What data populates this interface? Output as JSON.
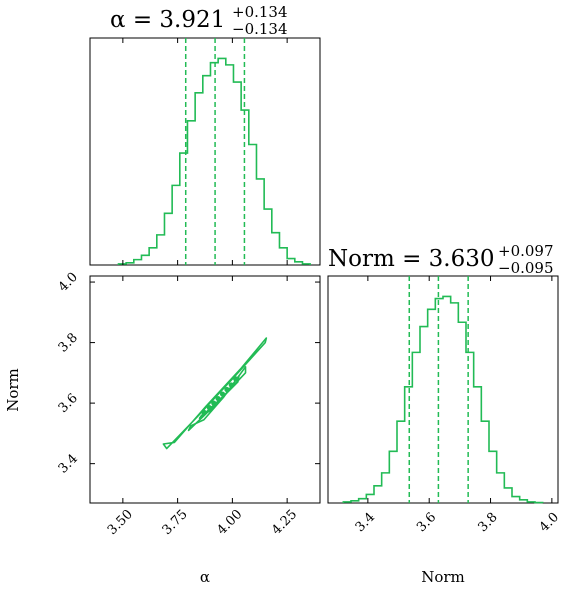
{
  "colors": {
    "series": "#22bb55",
    "axis": "#000000",
    "background": "#ffffff"
  },
  "chart_data": [
    {
      "type": "histogram",
      "panel": "alpha-marginal",
      "title": {
        "prefix": "α = 3.921",
        "sup": "+0.134",
        "sub": "−0.134"
      },
      "xlim": [
        3.35,
        4.4
      ],
      "bin_width": 0.035,
      "bin_start": 3.48,
      "counts": [
        0.5,
        1.0,
        2.5,
        4.5,
        8,
        14,
        24,
        37,
        52,
        67,
        80,
        88,
        94,
        96,
        93,
        85,
        72,
        56,
        40,
        26,
        15,
        8,
        3,
        1.5,
        0.5
      ],
      "quantiles": [
        3.787,
        3.921,
        4.055
      ]
    },
    {
      "type": "contour",
      "panel": "alpha-norm-2d",
      "xlim": [
        3.35,
        4.4
      ],
      "ylim": [
        3.27,
        4.02
      ],
      "xlabel": "α",
      "ylabel": "Norm",
      "xticks": [
        "3.50",
        "3.75",
        "4.00",
        "4.25"
      ],
      "xtick_values": [
        3.5,
        3.75,
        4.0,
        4.25
      ],
      "yticks": [
        "3.4",
        "3.6",
        "3.8",
        "4.0"
      ],
      "ytick_values": [
        3.4,
        3.6,
        3.8,
        4.0
      ],
      "contours": [
        [
          [
            3.685,
            3.465
          ],
          [
            3.735,
            3.47
          ],
          [
            3.88,
            3.59
          ],
          [
            4.04,
            3.715
          ],
          [
            4.155,
            3.815
          ],
          [
            4.15,
            3.8
          ],
          [
            4.0,
            3.68
          ],
          [
            3.84,
            3.555
          ],
          [
            3.7,
            3.45
          ]
        ],
        [
          [
            3.81,
            3.525
          ],
          [
            3.87,
            3.545
          ],
          [
            3.96,
            3.62
          ],
          [
            4.06,
            3.72
          ],
          [
            4.06,
            3.7
          ],
          [
            3.975,
            3.635
          ],
          [
            3.88,
            3.565
          ],
          [
            3.8,
            3.51
          ]
        ],
        [
          [
            3.86,
            3.56
          ],
          [
            3.9,
            3.575
          ],
          [
            3.96,
            3.62
          ],
          [
            4.03,
            3.69
          ],
          [
            4.025,
            3.67
          ],
          [
            3.97,
            3.63
          ],
          [
            3.91,
            3.59
          ],
          [
            3.85,
            3.55
          ]
        ]
      ],
      "points": [
        [
          3.87,
          3.57
        ],
        [
          3.895,
          3.585
        ],
        [
          3.915,
          3.6
        ],
        [
          3.935,
          3.615
        ],
        [
          3.955,
          3.63
        ],
        [
          3.975,
          3.645
        ],
        [
          3.995,
          3.66
        ],
        [
          4.015,
          3.68
        ]
      ]
    },
    {
      "type": "histogram",
      "panel": "norm-marginal",
      "title": {
        "prefix": "Norm = 3.630",
        "sup": "+0.097",
        "sub": "−0.095"
      },
      "xlim": [
        3.27,
        4.02
      ],
      "xlabel": "Norm",
      "xticks": [
        "3.4",
        "3.6",
        "3.8",
        "4.0"
      ],
      "xtick_values": [
        3.4,
        3.6,
        3.8,
        4.0
      ],
      "bin_width": 0.025,
      "bin_start": 3.32,
      "counts": [
        0.5,
        1.0,
        2,
        4,
        8,
        14,
        24,
        38,
        54,
        70,
        82,
        90,
        95,
        96,
        93,
        84,
        70,
        54,
        38,
        24,
        14,
        7,
        3,
        1.5,
        0.5,
        0.2
      ],
      "quantiles": [
        3.535,
        3.63,
        3.727
      ]
    }
  ]
}
